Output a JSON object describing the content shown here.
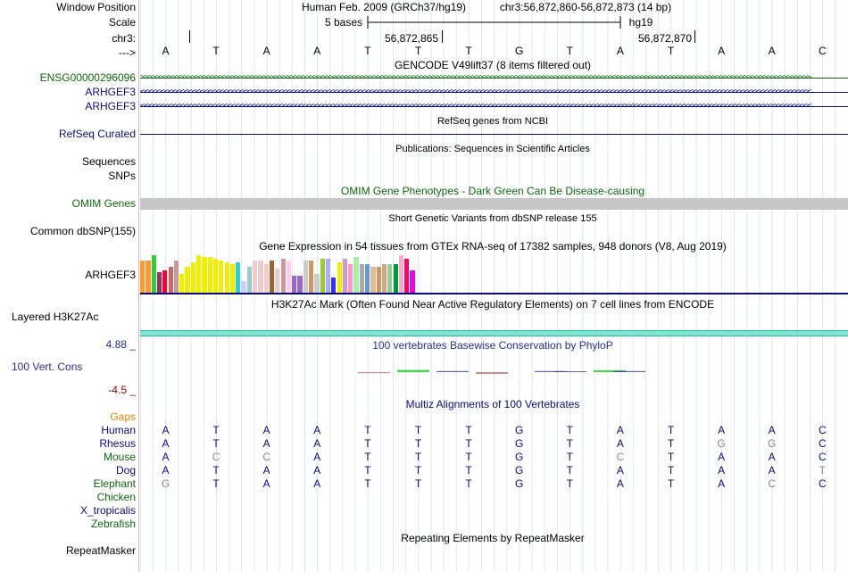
{
  "header": {
    "window_position_label": "Window Position",
    "scale_label": "Scale",
    "chr_label": "chr3:",
    "arrow_label": "--->",
    "assembly_text": "Human Feb. 2009 (GRCh37/hg19)",
    "position_text": "chr3:56,872,860-56,872,873 (14 bp)",
    "scale_text": "5 bases",
    "db_text": "hg19",
    "coord_1": "56,872,865",
    "coord_2": "56,872,870"
  },
  "sequence": [
    "A",
    "T",
    "A",
    "A",
    "T",
    "T",
    "T",
    "G",
    "T",
    "A",
    "T",
    "A",
    "A",
    "C"
  ],
  "tracks": {
    "gencode": {
      "title": "GENCODE V49lift37 (8 items filtered out)",
      "items": [
        {
          "label": "ENSG00000296096",
          "strand": ">"
        },
        {
          "label": "ARHGEF3",
          "strand": "<"
        },
        {
          "label": "ARHGEF3",
          "strand": "<"
        }
      ]
    },
    "refseq": {
      "title": "RefSeq genes from NCBI",
      "label": "RefSeq Curated"
    },
    "publications": {
      "title": "Publications: Sequences in Scientific Articles",
      "label_1": "Sequences",
      "label_2": "SNPs"
    },
    "omim": {
      "title": "OMIM Gene Phenotypes - Dark Green Can Be Disease-causing",
      "label": "OMIM Genes"
    },
    "dbsnp": {
      "title": "Short Genetic Variants from dbSNP release 155",
      "label": "Common dbSNP(155)"
    },
    "gtex": {
      "title": "Gene Expression in 54 tissues from GTEx RNA-seq of 17382 samples, 948 donors (V8, Aug 2019)",
      "label": "ARHGEF3",
      "colors": [
        "#ff9933",
        "#ff9933",
        "#33cc33",
        "#993366",
        "#ff0033",
        "#cc6666",
        "#cc9999",
        "#eeee00",
        "#eeee00",
        "#eeee00",
        "#eeee00",
        "#eeee00",
        "#eeee00",
        "#eeee00",
        "#eeee00",
        "#eeee00",
        "#eeee00",
        "#33cccc",
        "#ccccff",
        "#99cccc",
        "#eecccc",
        "#eecccc",
        "#eecccc",
        "#996633",
        "#eecccc",
        "#cc9999",
        "#ffccee",
        "#9966cc",
        "#9966cc",
        "#cccccc",
        "#cc9966",
        "#cccccc",
        "#99cc33",
        "#aaaaff",
        "#3333ff",
        "#eeee00",
        "#cc99cc",
        "#ff99cc",
        "#aaeeaa",
        "#aaaaaa",
        "#6699cc",
        "#ddbb99",
        "#cc9966",
        "#ccaa88",
        "#99cc99",
        "#009933",
        "#ffaacc",
        "#ff0066",
        "#ee00ee"
      ],
      "values": [
        0.85,
        0.85,
        1.0,
        0.55,
        0.6,
        0.7,
        0.85,
        0.5,
        0.7,
        0.8,
        1.0,
        0.95,
        0.95,
        0.9,
        0.85,
        0.8,
        0.75,
        0.8,
        0.3,
        0.7,
        0.85,
        0.85,
        0.75,
        0.85,
        0.65,
        0.9,
        0.85,
        0.45,
        0.45,
        0.85,
        0.85,
        0.5,
        0.9,
        0.9,
        0.4,
        0.8,
        0.9,
        0.75,
        0.95,
        0.75,
        0.75,
        0.7,
        0.7,
        0.75,
        0.75,
        0.75,
        1.0,
        0.9,
        0.6
      ]
    },
    "h3k27ac": {
      "title": "H3K27Ac Mark (Often Found Near Active Regulatory Elements) on 7 cell lines from ENCODE",
      "label": "Layered H3K27Ac"
    },
    "conservation": {
      "title": "100 vertebrates Basewise Conservation by PhyloP",
      "label": "100 Vert. Cons",
      "max": "4.88 _",
      "min": "-4.5 _",
      "scores": [
        0,
        0,
        0,
        -0.3,
        0,
        0.6,
        0,
        0.3,
        0,
        -0.5,
        0,
        0,
        0.3,
        0.2,
        0,
        0.5,
        0.3,
        0,
        0
      ]
    },
    "multiz": {
      "title": "Multiz Alignments of 100 Vertebrates",
      "gaps_label": "Gaps",
      "species": [
        {
          "name": "Human",
          "bases": [
            "A",
            "T",
            "A",
            "A",
            "T",
            "T",
            "T",
            "G",
            "T",
            "A",
            "T",
            "A",
            "A",
            "C"
          ],
          "dim": []
        },
        {
          "name": "Rhesus",
          "bases": [
            "A",
            "T",
            "A",
            "A",
            "T",
            "T",
            "T",
            "G",
            "T",
            "A",
            "T",
            "G",
            "G",
            "C"
          ],
          "dim": [
            11,
            12
          ]
        },
        {
          "name": "Mouse",
          "bases": [
            "A",
            "C",
            "C",
            "A",
            "T",
            "T",
            "T",
            "G",
            "T",
            "C",
            "T",
            "A",
            "A",
            "C"
          ],
          "dim": [
            1,
            2,
            9
          ]
        },
        {
          "name": "Dog",
          "bases": [
            "A",
            "T",
            "A",
            "A",
            "T",
            "T",
            "T",
            "G",
            "T",
            "A",
            "T",
            "A",
            "A",
            "T"
          ],
          "dim": [
            13
          ]
        },
        {
          "name": "Elephant",
          "bases": [
            "G",
            "T",
            "A",
            "A",
            "T",
            "T",
            "T",
            "G",
            "T",
            "A",
            "T",
            "A",
            "C",
            "C"
          ],
          "dim": [
            0,
            12
          ]
        },
        {
          "name": "Chicken",
          "bases": [],
          "dim": []
        },
        {
          "name": "X_tropicalis",
          "bases": [],
          "dim": []
        },
        {
          "name": "Zebrafish",
          "bases": [],
          "dim": []
        }
      ]
    },
    "repeatmasker": {
      "title": "Repeating Elements by RepeatMasker",
      "label": "RepeatMasker"
    }
  },
  "colors": {
    "navy": "#0c0c78",
    "green": "#0e670e",
    "omim_gray": "#c6c6c6",
    "h3k27ac": "#7fe5d2"
  }
}
